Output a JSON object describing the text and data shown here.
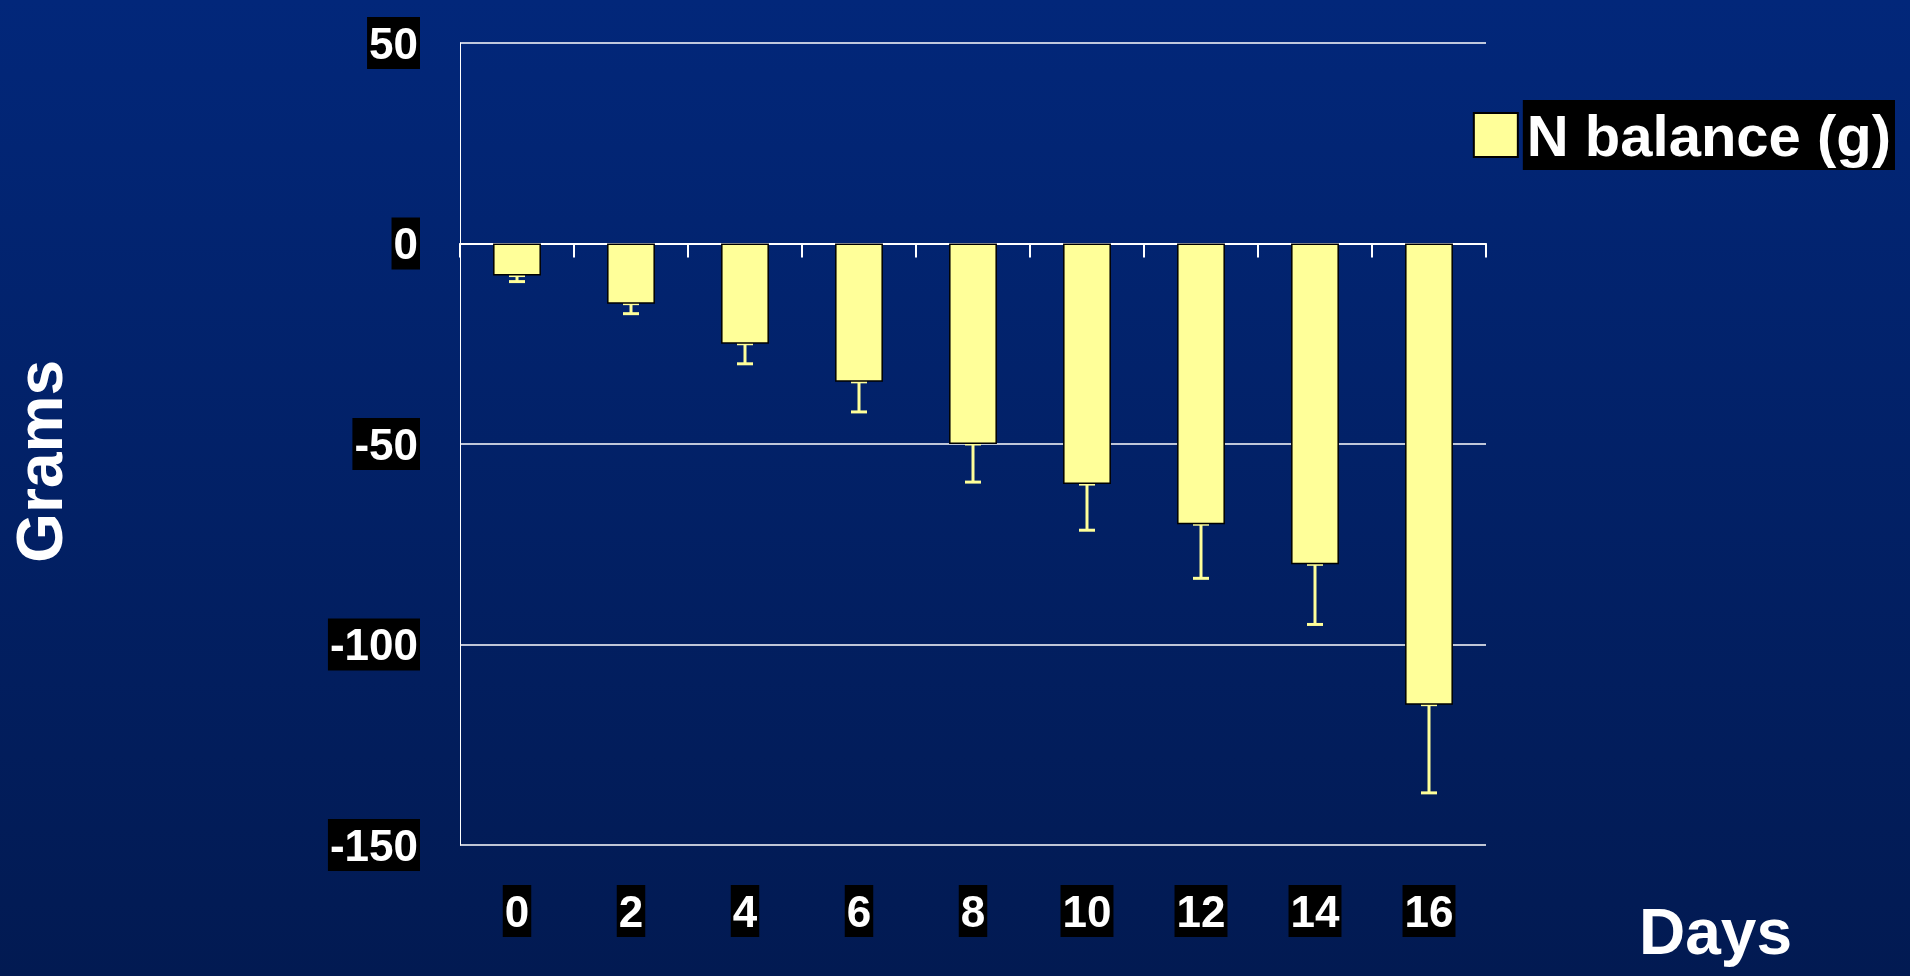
{
  "chart_data": {
    "type": "bar",
    "xlabel": "Days",
    "ylabel": "Grams",
    "categories": [
      "0",
      "2",
      "4",
      "6",
      "8",
      "10",
      "12",
      "14",
      "16"
    ],
    "series": [
      {
        "name": "N balance (g)",
        "color": "#ffff99",
        "values": [
          -8,
          -15,
          -25,
          -34.5,
          -50,
          -60,
          -70,
          -80,
          -115
        ],
        "errors": [
          [
            -9.5,
            -8
          ],
          [
            -17.5,
            -15
          ],
          [
            -30,
            -25
          ],
          [
            -42,
            -34.5
          ],
          [
            -59.5,
            -50
          ],
          [
            -71.5,
            -60
          ],
          [
            -83.5,
            -70
          ],
          [
            -95,
            -80
          ],
          [
            -137,
            -115
          ]
        ]
      }
    ],
    "ylim": [
      -150,
      50
    ],
    "yticks": [
      -150,
      -100,
      -50,
      0,
      50
    ],
    "grid": "y",
    "legend": "top right"
  }
}
